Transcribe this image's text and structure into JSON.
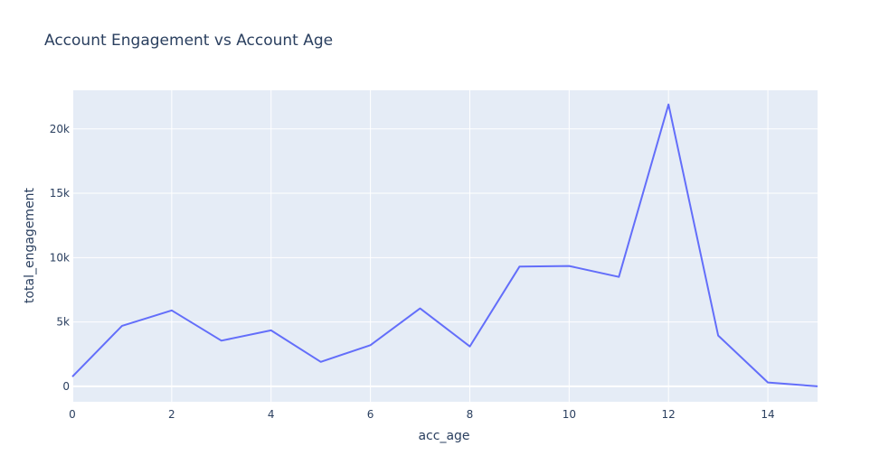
{
  "chart_data": {
    "type": "line",
    "title": "Account Engagement vs Account Age",
    "xlabel": "acc_age",
    "ylabel": "total_engagement",
    "xlim": [
      0,
      15
    ],
    "ylim": [
      -1200,
      23000
    ],
    "x_ticks": [
      0,
      2,
      4,
      6,
      8,
      10,
      12,
      14
    ],
    "x_tick_labels": [
      "0",
      "2",
      "4",
      "6",
      "8",
      "10",
      "12",
      "14"
    ],
    "y_ticks": [
      0,
      5000,
      10000,
      15000,
      20000
    ],
    "y_tick_labels": [
      "0",
      "5k",
      "10k",
      "15k",
      "20k"
    ],
    "grid": true,
    "legend": "none",
    "series": [
      {
        "color": "#636efa",
        "x": [
          0,
          1,
          2,
          3,
          4,
          5,
          6,
          7,
          8,
          9,
          10,
          11,
          12,
          13,
          14,
          15
        ],
        "values": [
          750,
          4700,
          5900,
          3550,
          4350,
          1900,
          3200,
          6050,
          3100,
          9300,
          9350,
          8500,
          21900,
          3950,
          300,
          0
        ]
      }
    ],
    "colors": {
      "plot_bg": "#e5ecf6",
      "grid": "#ffffff",
      "text": "#2a3f5f"
    }
  }
}
